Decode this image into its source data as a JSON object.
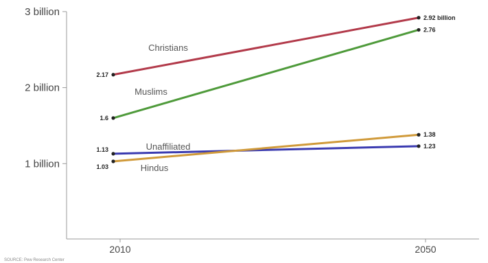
{
  "chart_data": {
    "type": "line",
    "x": [
      "2010",
      "2050"
    ],
    "ylim": [
      0,
      3
    ],
    "ytick_labels": [
      "1 billion",
      "2 billion",
      "3 billion"
    ],
    "yticks": [
      1,
      2,
      3
    ],
    "series": [
      {
        "name": "Christians",
        "values": [
          2.17,
          2.92
        ],
        "color": "#b23a4a",
        "labels": [
          "2.17",
          "2.92 billion"
        ]
      },
      {
        "name": "Muslims",
        "values": [
          1.6,
          2.76
        ],
        "color": "#4e9a3a",
        "labels": [
          "1.6",
          "2.76"
        ]
      },
      {
        "name": "Unaffiliated",
        "values": [
          1.13,
          1.23
        ],
        "color": "#3a3ab0",
        "labels": [
          "1.13",
          "1.23"
        ]
      },
      {
        "name": "Hindus",
        "values": [
          1.03,
          1.38
        ],
        "color": "#d09a3a",
        "labels": [
          "1.03",
          "1.38"
        ]
      }
    ],
    "grid": false,
    "source": "SOURCE: Pew Research Center"
  }
}
